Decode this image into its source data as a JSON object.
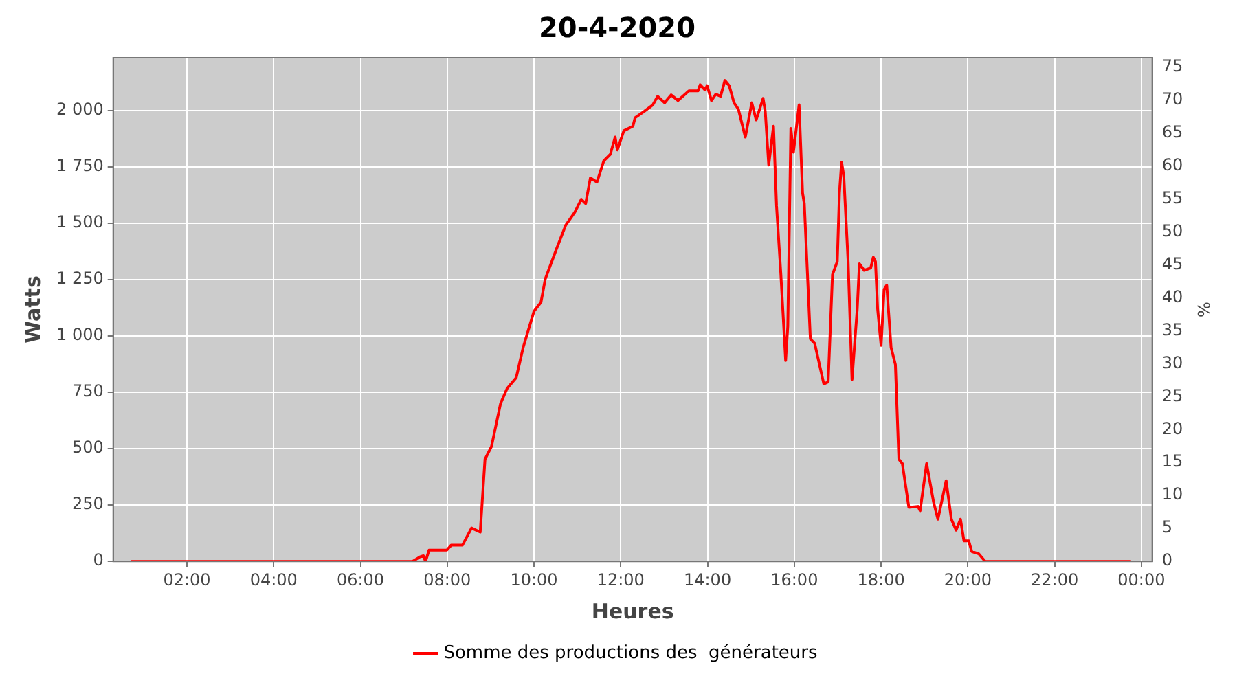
{
  "chart_data": {
    "type": "line",
    "title": "20-4-2020",
    "xlabel": "Heures",
    "ylabel": "Watts",
    "y2label": "%",
    "xlim": [
      0.3,
      24.25
    ],
    "xticks": [
      {
        "value": 2,
        "label": "02:00"
      },
      {
        "value": 4,
        "label": "04:00"
      },
      {
        "value": 6,
        "label": "06:00"
      },
      {
        "value": 8,
        "label": "08:00"
      },
      {
        "value": 10,
        "label": "10:00"
      },
      {
        "value": 12,
        "label": "12:00"
      },
      {
        "value": 14,
        "label": "14:00"
      },
      {
        "value": 16,
        "label": "16:00"
      },
      {
        "value": 18,
        "label": "18:00"
      },
      {
        "value": 20,
        "label": "20:00"
      },
      {
        "value": 22,
        "label": "22:00"
      },
      {
        "value": 24,
        "label": "00:00"
      }
    ],
    "ylim": [
      0,
      2234
    ],
    "yticks": [
      0,
      250,
      500,
      750,
      {
        "value": 1000,
        "label": "1 000"
      },
      {
        "value": 1250,
        "label": "1 250"
      },
      {
        "value": 1500,
        "label": "1 500"
      },
      {
        "value": 1750,
        "label": "1 750"
      },
      {
        "value": 2000,
        "label": "2 000"
      }
    ],
    "y2lim": [
      0,
      76.4
    ],
    "y2ticks": [
      0,
      5,
      10,
      15,
      20,
      25,
      30,
      35,
      40,
      45,
      50,
      55,
      60,
      65,
      70,
      75
    ],
    "grid": true,
    "legend": "bottom",
    "marker": "none",
    "line_style": "solid",
    "series": [
      {
        "name": "Somme des productions des  générateurs",
        "color": "#ff0000",
        "x": [
          0.7,
          7.2,
          7.37,
          7.45,
          7.5,
          7.58,
          7.99,
          8.09,
          8.35,
          8.56,
          8.76,
          8.87,
          9.02,
          9.23,
          9.38,
          9.59,
          9.75,
          10.0,
          10.16,
          10.26,
          10.52,
          10.73,
          10.94,
          11.09,
          11.19,
          11.3,
          11.45,
          11.61,
          11.76,
          11.87,
          11.92,
          12.07,
          12.28,
          12.33,
          12.54,
          12.74,
          12.85,
          13.01,
          13.16,
          13.32,
          13.57,
          13.78,
          13.83,
          13.94,
          13.99,
          14.09,
          14.19,
          14.3,
          14.4,
          14.5,
          14.61,
          14.71,
          14.87,
          15.02,
          15.12,
          15.28,
          15.33,
          15.41,
          15.52,
          15.59,
          15.69,
          15.8,
          15.85,
          15.92,
          15.98,
          16.11,
          16.19,
          16.23,
          16.37,
          16.47,
          16.68,
          16.78,
          16.88,
          16.99,
          17.04,
          17.09,
          17.14,
          17.24,
          17.33,
          17.45,
          17.5,
          17.61,
          17.76,
          17.82,
          17.87,
          17.92,
          18.0,
          18.07,
          18.13,
          18.23,
          18.33,
          18.41,
          18.49,
          18.64,
          18.85,
          18.9,
          19.05,
          19.21,
          19.31,
          19.5,
          19.62,
          19.73,
          19.83,
          19.91,
          20.02,
          20.09,
          20.25,
          20.4,
          23.76
        ],
        "values": [
          0,
          0,
          20,
          25,
          0,
          50,
          50,
          72,
          72,
          148,
          130,
          453,
          510,
          701,
          767,
          815,
          949,
          1110,
          1149,
          1253,
          1387,
          1491,
          1549,
          1606,
          1587,
          1701,
          1682,
          1777,
          1806,
          1882,
          1825,
          1910,
          1930,
          1968,
          1996,
          2025,
          2063,
          2034,
          2069,
          2044,
          2087,
          2087,
          2114,
          2091,
          2110,
          2044,
          2072,
          2063,
          2133,
          2110,
          2034,
          2006,
          1882,
          2034,
          1958,
          2053,
          1996,
          1758,
          1930,
          1577,
          1272,
          891,
          1043,
          1920,
          1815,
          2025,
          1634,
          1587,
          987,
          967,
          787,
          796,
          1272,
          1330,
          1634,
          1771,
          1710,
          1330,
          806,
          1120,
          1320,
          1291,
          1301,
          1349,
          1330,
          1120,
          958,
          1206,
          1225,
          949,
          873,
          453,
          434,
          240,
          244,
          225,
          434,
          263,
          187,
          358,
          187,
          139,
          187,
          91,
          91,
          44,
          34,
          0,
          0
        ]
      }
    ]
  }
}
